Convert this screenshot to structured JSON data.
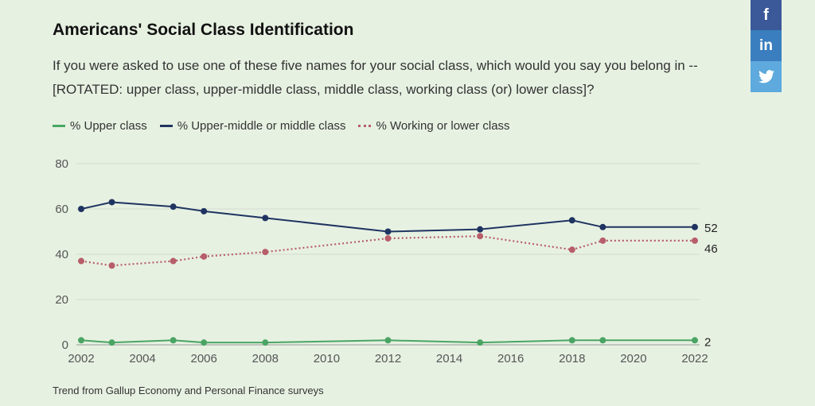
{
  "chart_data": {
    "type": "line",
    "title": "Americans' Social Class Identification",
    "subtitle": "If you were asked to use one of these five names for your social class, which would you say you belong in -- [ROTATED: upper class, upper-middle class, middle class, working class (or) lower class]?",
    "source": "Trend from Gallup Economy and Personal Finance surveys",
    "xlim": [
      2002,
      2022
    ],
    "ylim": [
      0,
      80
    ],
    "x_ticks": [
      "2002",
      "2004",
      "2006",
      "2008",
      "2010",
      "2012",
      "2014",
      "2016",
      "2018",
      "2020",
      "2022"
    ],
    "y_ticks": [
      "0",
      "20",
      "40",
      "60",
      "80"
    ],
    "grid": true,
    "legend": "top-left",
    "series": [
      {
        "name": "% Upper class",
        "color": "#4aa564",
        "style": "solid",
        "x": [
          2002,
          2003,
          2005,
          2006,
          2008,
          2012,
          2015,
          2018,
          2019,
          2022
        ],
        "values": [
          2,
          1,
          2,
          1,
          1,
          2,
          1,
          2,
          2,
          2
        ],
        "end_label": "2"
      },
      {
        "name": "% Upper-middle or middle class",
        "color": "#1f3461",
        "style": "solid",
        "x": [
          2002,
          2003,
          2005,
          2006,
          2008,
          2012,
          2015,
          2018,
          2019,
          2022
        ],
        "values": [
          60,
          63,
          61,
          59,
          56,
          50,
          51,
          55,
          52,
          52
        ],
        "end_label": "52"
      },
      {
        "name": "% Working or lower class",
        "color": "#b75e6a",
        "style": "dotted",
        "x": [
          2002,
          2003,
          2005,
          2006,
          2008,
          2012,
          2015,
          2018,
          2019,
          2022
        ],
        "values": [
          37,
          35,
          37,
          39,
          41,
          47,
          48,
          42,
          46,
          46
        ],
        "end_label": "46"
      }
    ]
  },
  "share": {
    "facebook_icon": "facebook-icon",
    "facebook_glyph": "f",
    "linkedin_icon": "linkedin-icon",
    "linkedin_glyph": "in",
    "twitter_icon": "twitter-icon"
  }
}
